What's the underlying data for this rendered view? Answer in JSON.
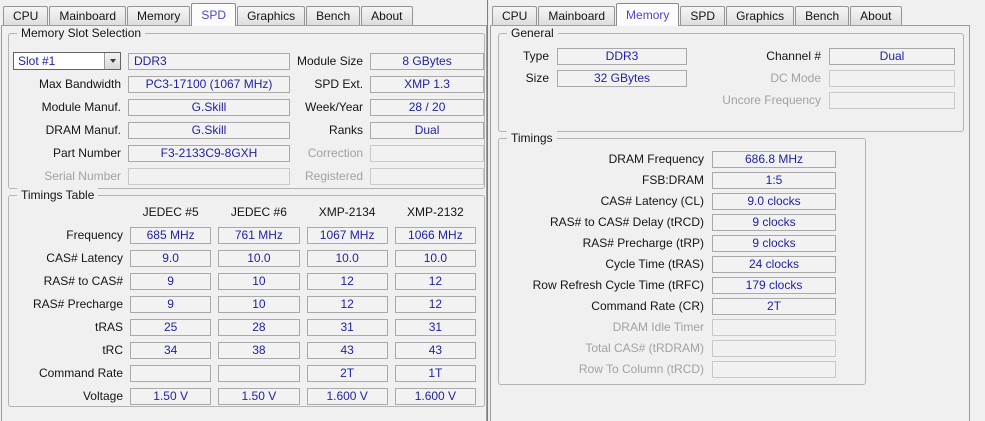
{
  "colors": {
    "value_text": "#2121a8",
    "active_tab_text": "#4d44d0",
    "label_text": "#141414",
    "disabled_text": "#a2a2a2"
  },
  "left_window": {
    "tabs": [
      {
        "label": "CPU",
        "active": false
      },
      {
        "label": "Mainboard",
        "active": false
      },
      {
        "label": "Memory",
        "active": false
      },
      {
        "label": "SPD",
        "active": true
      },
      {
        "label": "Graphics",
        "active": false
      },
      {
        "label": "Bench",
        "active": false
      },
      {
        "label": "About",
        "active": false
      }
    ],
    "slot_group": {
      "title": "Memory Slot Selection",
      "rows": [
        {
          "cells": [
            {
              "type": "combo",
              "text": "Slot #1"
            },
            {
              "type": "field",
              "text": "DDR3",
              "align": "left",
              "name": "module-type"
            },
            {
              "type": "label",
              "text": "Module Size"
            },
            {
              "type": "field",
              "text": "8 GBytes"
            }
          ]
        },
        {
          "cells": [
            {
              "type": "label",
              "text": "Max Bandwidth"
            },
            {
              "type": "field",
              "text": "PC3-17100 (1067 MHz)"
            },
            {
              "type": "label",
              "text": "SPD Ext."
            },
            {
              "type": "field",
              "text": "XMP 1.3"
            }
          ]
        },
        {
          "cells": [
            {
              "type": "label",
              "text": "Module Manuf."
            },
            {
              "type": "field",
              "text": "G.Skill"
            },
            {
              "type": "label",
              "text": "Week/Year"
            },
            {
              "type": "field",
              "text": "28 / 20"
            }
          ]
        },
        {
          "cells": [
            {
              "type": "label",
              "text": "DRAM Manuf."
            },
            {
              "type": "field",
              "text": "G.Skill"
            },
            {
              "type": "label",
              "text": "Ranks"
            },
            {
              "type": "field",
              "text": "Dual"
            }
          ]
        },
        {
          "cells": [
            {
              "type": "label",
              "text": "Part Number"
            },
            {
              "type": "field",
              "text": "F3-2133C9-8GXH"
            },
            {
              "type": "label",
              "text": "Correction",
              "disabled": true
            },
            {
              "type": "field",
              "text": "",
              "disabled": true
            }
          ]
        },
        {
          "cells": [
            {
              "type": "label",
              "text": "Serial Number",
              "disabled": true
            },
            {
              "type": "field",
              "text": "",
              "disabled": true
            },
            {
              "type": "label",
              "text": "Registered",
              "disabled": true
            },
            {
              "type": "field",
              "text": "",
              "disabled": true
            }
          ]
        }
      ]
    },
    "timings_table": {
      "title": "Timings Table",
      "columns": [
        "JEDEC #5",
        "JEDEC #6",
        "XMP-2134",
        "XMP-2132"
      ],
      "rows": [
        {
          "label": "Frequency",
          "values": [
            "685 MHz",
            "761 MHz",
            "1067 MHz",
            "1066 MHz"
          ]
        },
        {
          "label": "CAS# Latency",
          "values": [
            "9.0",
            "10.0",
            "10.0",
            "10.0"
          ]
        },
        {
          "label": "RAS# to CAS#",
          "values": [
            "9",
            "10",
            "12",
            "12"
          ]
        },
        {
          "label": "RAS# Precharge",
          "values": [
            "9",
            "10",
            "12",
            "12"
          ]
        },
        {
          "label": "tRAS",
          "values": [
            "25",
            "28",
            "31",
            "31"
          ]
        },
        {
          "label": "tRC",
          "values": [
            "34",
            "38",
            "43",
            "43"
          ]
        },
        {
          "label": "Command Rate",
          "values": [
            "",
            "",
            "2T",
            "1T"
          ]
        },
        {
          "label": "Voltage",
          "values": [
            "1.50 V",
            "1.50 V",
            "1.600 V",
            "1.600 V"
          ]
        }
      ]
    }
  },
  "right_window": {
    "tabs": [
      {
        "label": "CPU",
        "active": false
      },
      {
        "label": "Mainboard",
        "active": false
      },
      {
        "label": "Memory",
        "active": true
      },
      {
        "label": "SPD",
        "active": false
      },
      {
        "label": "Graphics",
        "active": false
      },
      {
        "label": "Bench",
        "active": false
      },
      {
        "label": "About",
        "active": false
      }
    ],
    "general_group": {
      "title": "General",
      "rows": [
        {
          "cells": [
            {
              "type": "label",
              "text": "Type"
            },
            {
              "type": "field",
              "text": "DDR3"
            },
            {
              "type": "label",
              "text": "Channel #"
            },
            {
              "type": "field",
              "text": "Dual"
            }
          ]
        },
        {
          "cells": [
            {
              "type": "label",
              "text": "Size"
            },
            {
              "type": "field",
              "text": "32 GBytes"
            },
            {
              "type": "label",
              "text": "DC Mode",
              "disabled": true
            },
            {
              "type": "field",
              "text": "",
              "disabled": true
            }
          ]
        },
        {
          "cells": [
            {
              "type": "none"
            },
            {
              "type": "none"
            },
            {
              "type": "label",
              "text": "Uncore Frequency",
              "disabled": true
            },
            {
              "type": "field",
              "text": "",
              "disabled": true
            }
          ]
        }
      ]
    },
    "timings_group": {
      "title": "Timings",
      "rows": [
        {
          "label": "DRAM Frequency",
          "value": "686.8 MHz"
        },
        {
          "label": "FSB:DRAM",
          "value": "1:5"
        },
        {
          "label": "CAS# Latency (CL)",
          "value": "9.0 clocks"
        },
        {
          "label": "RAS# to CAS# Delay (tRCD)",
          "value": "9 clocks"
        },
        {
          "label": "RAS# Precharge (tRP)",
          "value": "9 clocks"
        },
        {
          "label": "Cycle Time (tRAS)",
          "value": "24 clocks"
        },
        {
          "label": "Row Refresh Cycle Time (tRFC)",
          "value": "179 clocks"
        },
        {
          "label": "Command Rate (CR)",
          "value": "2T"
        },
        {
          "label": "DRAM Idle Timer",
          "value": "",
          "disabled": true
        },
        {
          "label": "Total CAS# (tRDRAM)",
          "value": "",
          "disabled": true
        },
        {
          "label": "Row To Column (tRCD)",
          "value": "",
          "disabled": true
        }
      ]
    }
  }
}
